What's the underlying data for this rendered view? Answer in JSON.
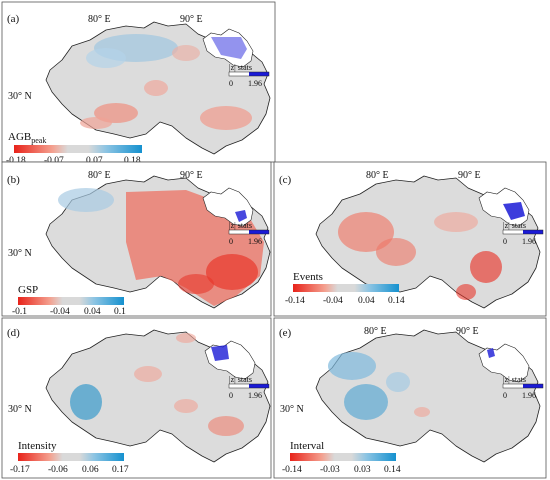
{
  "panels": [
    {
      "id": "a",
      "label": "(a)",
      "lon_labels": [
        "80° E",
        "90° E"
      ],
      "lat_label": "30° N",
      "variable": "AGB",
      "variable_sub": "peak",
      "ticks": [
        "-0.18",
        "-0.07",
        "0.07",
        "0.18"
      ],
      "z_label": "|z| stats",
      "z_ticks": [
        "0",
        "1.96"
      ]
    },
    {
      "id": "b",
      "label": "(b)",
      "lon_labels": [
        "80° E",
        "90° E"
      ],
      "lat_label": "30° N",
      "variable": "GSP",
      "ticks": [
        "-0.1",
        "-0.04",
        "0.04",
        "0.1"
      ],
      "z_label": "|z| stats",
      "z_ticks": [
        "0",
        "1.96"
      ]
    },
    {
      "id": "c",
      "label": "(c)",
      "lon_labels": [
        "80° E",
        "90° E"
      ],
      "lat_label": "",
      "variable": "Events",
      "ticks": [
        "-0.14",
        "-0.04",
        "0.04",
        "0.14"
      ],
      "z_label": "|z| stats",
      "z_ticks": [
        "0",
        "1.96"
      ]
    },
    {
      "id": "d",
      "label": "(d)",
      "lon_labels": [],
      "lat_label": "30° N",
      "variable": "Intensity",
      "ticks": [
        "-0.17",
        "-0.06",
        "0.06",
        "0.17"
      ],
      "z_label": "|z| stats",
      "z_ticks": [
        "0",
        "1.96"
      ]
    },
    {
      "id": "e",
      "label": "(e)",
      "lon_labels": [
        "80° E",
        "90° E"
      ],
      "lat_label": "30° N",
      "variable": "Interval",
      "ticks": [
        "-0.14",
        "-0.03",
        "0.03",
        "0.14"
      ],
      "z_label": "|z| stats",
      "z_ticks": [
        "0",
        "1.96"
      ]
    }
  ],
  "colors": {
    "negative": "#e8372c",
    "neutral": "#d9d9d9",
    "positive": "#1e90c8",
    "significance": "#1a1ad6"
  }
}
